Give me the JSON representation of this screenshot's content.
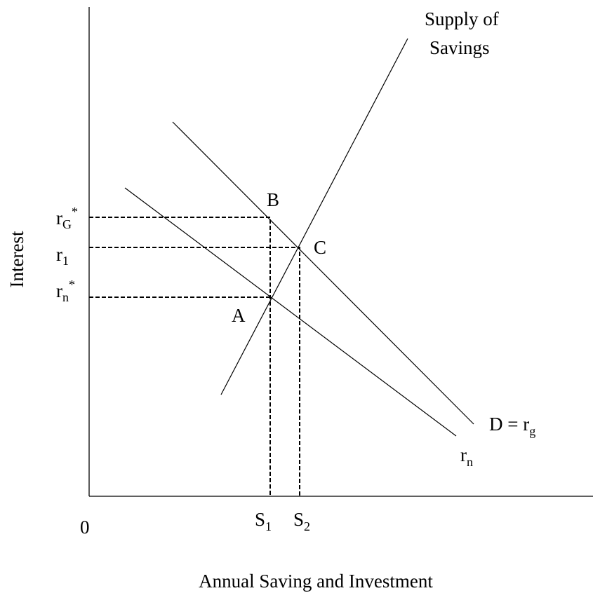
{
  "curves": {
    "supply": {
      "line1": "Supply of",
      "line2": "Savings"
    },
    "demand_g": {
      "text": "D = r",
      "sub": "g"
    },
    "demand_n": {
      "base": "r",
      "sub": "n"
    }
  },
  "points": [
    "A",
    "B",
    "C"
  ],
  "y_labels": [
    {
      "base": "r",
      "sub": "G",
      "sup": "*"
    },
    {
      "base": "r",
      "sub": "1"
    },
    {
      "base": "r",
      "sub": "n",
      "sup": "*"
    }
  ],
  "x_labels": [
    {
      "base": "S",
      "sub": "1"
    },
    {
      "base": "S",
      "sub": "2"
    }
  ],
  "origin": "0",
  "y_axis_title": "Interest",
  "x_axis_title": "Annual Saving and Investment"
}
